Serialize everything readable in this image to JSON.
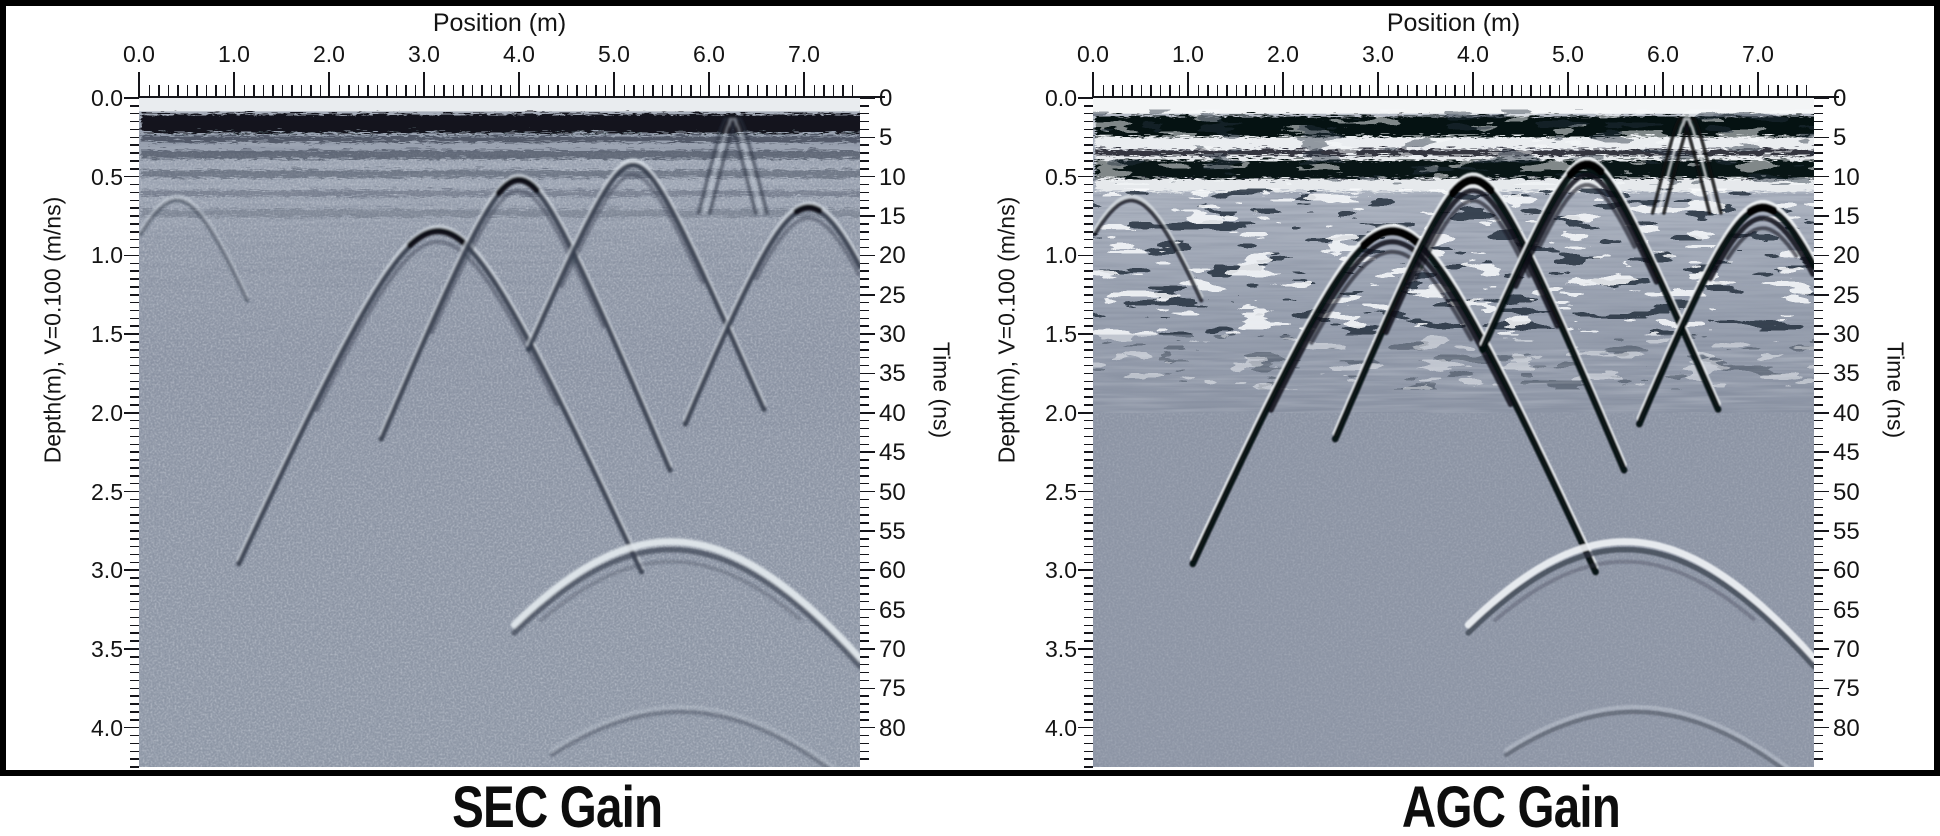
{
  "figure": {
    "panels": [
      {
        "id": "sec",
        "caption": "SEC Gain",
        "axes": {
          "top_title": "Position (m)",
          "left_title": "Depth(m), V=0.100 (m/ns)",
          "right_title": "Time (ns)",
          "position_tick_labels": [
            "0.0",
            "1.0",
            "2.0",
            "3.0",
            "4.0",
            "5.0",
            "6.0",
            "7.0"
          ],
          "depth_tick_labels": [
            "0.0",
            "0.5",
            "1.0",
            "1.5",
            "2.0",
            "2.5",
            "3.0",
            "3.5",
            "4.0"
          ],
          "time_tick_labels": [
            "0",
            "5",
            "10",
            "15",
            "20",
            "25",
            "30",
            "35",
            "40",
            "45",
            "50",
            "55",
            "60",
            "65",
            "70",
            "75",
            "80"
          ]
        }
      },
      {
        "id": "agc",
        "caption": "AGC Gain",
        "axes": {
          "top_title": "Position (m)",
          "left_title": "Depth(m), V=0.100 (m/ns)",
          "right_title": "Time (ns)",
          "position_tick_labels": [
            "0.0",
            "1.0",
            "2.0",
            "3.0",
            "4.0",
            "5.0",
            "6.0",
            "7.0"
          ],
          "depth_tick_labels": [
            "0.0",
            "0.5",
            "1.0",
            "1.5",
            "2.0",
            "2.5",
            "3.0",
            "3.5",
            "4.0"
          ],
          "time_tick_labels": [
            "0",
            "5",
            "10",
            "15",
            "20",
            "25",
            "30",
            "35",
            "40",
            "45",
            "50",
            "55",
            "60",
            "65",
            "70",
            "75",
            "80"
          ]
        }
      }
    ]
  },
  "chart_data": [
    {
      "type": "heatmap",
      "title": "SEC Gain",
      "gain": "SEC",
      "xlabel": "Position (m)",
      "ylabel_left": "Depth(m), V=0.100 (m/ns)",
      "ylabel_right": "Time (ns)",
      "x_range_m": [
        0,
        7.6
      ],
      "time_range_ns": [
        0,
        85
      ],
      "depth_range_m": [
        0,
        4.25
      ],
      "velocity_m_per_ns": 0.1,
      "features": [
        {
          "kind": "direct-wave-band",
          "time_ns": 3
        },
        {
          "kind": "hyperbola",
          "position_m": 3.15,
          "apex_time_ns": 17,
          "apex_depth_m": 0.85,
          "spread_ns_per_m": 27,
          "span": [
            1.05,
            5.3
          ],
          "strong": true
        },
        {
          "kind": "hyperbola",
          "position_m": 4.0,
          "apex_time_ns": 10.5,
          "apex_depth_m": 0.53,
          "spread_ns_per_m": 29,
          "span": [
            2.55,
            5.6
          ],
          "strong": true
        },
        {
          "kind": "hyperbola",
          "position_m": 5.2,
          "apex_time_ns": 8.5,
          "apex_depth_m": 0.43,
          "spread_ns_per_m": 28,
          "span": [
            4.1,
            6.6
          ],
          "strong": false
        },
        {
          "kind": "hyperbola",
          "position_m": 7.05,
          "apex_time_ns": 14,
          "apex_depth_m": 0.7,
          "spread_ns_per_m": 30,
          "span": [
            5.75,
            7.59
          ],
          "strong": true
        },
        {
          "kind": "vertical-disturbance",
          "position_m": 6.25,
          "apex_time_ns": 2.5,
          "apex_depth_m": 0.13,
          "spread_ns_per_m": 48,
          "span": [
            5.95,
            6.55
          ]
        },
        {
          "kind": "hyperbola-broad",
          "position_m": 5.6,
          "apex_time_ns": 57,
          "apex_depth_m": 2.85,
          "spread_ns_per_m": 22,
          "span": [
            3.95,
            7.59
          ]
        },
        {
          "kind": "hyperbola-faint",
          "position_m": 5.7,
          "apex_time_ns": 78,
          "apex_depth_m": 3.9,
          "spread_ns_per_m": 22,
          "span": [
            4.35,
            7.4
          ]
        },
        {
          "kind": "hyperbola-small",
          "position_m": 0.4,
          "apex_time_ns": 13,
          "apex_depth_m": 0.65,
          "spread_ns_per_m": 30,
          "span": [
            0.02,
            1.15
          ]
        }
      ]
    },
    {
      "type": "heatmap",
      "title": "AGC Gain",
      "gain": "AGC",
      "xlabel": "Position (m)",
      "ylabel_left": "Depth(m), V=0.100 (m/ns)",
      "ylabel_right": "Time (ns)",
      "x_range_m": [
        0,
        7.6
      ],
      "time_range_ns": [
        0,
        85
      ],
      "depth_range_m": [
        0,
        4.25
      ],
      "velocity_m_per_ns": 0.1,
      "features": [
        {
          "kind": "direct-wave-band",
          "time_ns": 3
        },
        {
          "kind": "hyperbola",
          "position_m": 3.15,
          "apex_time_ns": 17,
          "apex_depth_m": 0.85,
          "spread_ns_per_m": 27,
          "span": [
            1.05,
            5.3
          ],
          "strong": true
        },
        {
          "kind": "hyperbola",
          "position_m": 4.0,
          "apex_time_ns": 10.5,
          "apex_depth_m": 0.53,
          "spread_ns_per_m": 29,
          "span": [
            2.55,
            5.6
          ],
          "strong": true
        },
        {
          "kind": "hyperbola",
          "position_m": 5.2,
          "apex_time_ns": 8.5,
          "apex_depth_m": 0.43,
          "spread_ns_per_m": 28,
          "span": [
            4.1,
            6.6
          ],
          "strong": true
        },
        {
          "kind": "hyperbola",
          "position_m": 7.05,
          "apex_time_ns": 14,
          "apex_depth_m": 0.7,
          "spread_ns_per_m": 30,
          "span": [
            5.75,
            7.59
          ],
          "strong": true
        },
        {
          "kind": "vertical-disturbance",
          "position_m": 6.25,
          "apex_time_ns": 2.5,
          "apex_depth_m": 0.13,
          "spread_ns_per_m": 48,
          "span": [
            5.95,
            6.55
          ]
        },
        {
          "kind": "hyperbola-broad",
          "position_m": 5.6,
          "apex_time_ns": 57,
          "apex_depth_m": 2.85,
          "spread_ns_per_m": 22,
          "span": [
            3.95,
            7.59
          ]
        },
        {
          "kind": "hyperbola-faint",
          "position_m": 5.7,
          "apex_time_ns": 78,
          "apex_depth_m": 3.9,
          "spread_ns_per_m": 22,
          "span": [
            4.35,
            7.4
          ]
        },
        {
          "kind": "hyperbola-small",
          "position_m": 0.4,
          "apex_time_ns": 13,
          "apex_depth_m": 0.65,
          "spread_ns_per_m": 30,
          "span": [
            0.02,
            1.15
          ]
        }
      ]
    }
  ]
}
